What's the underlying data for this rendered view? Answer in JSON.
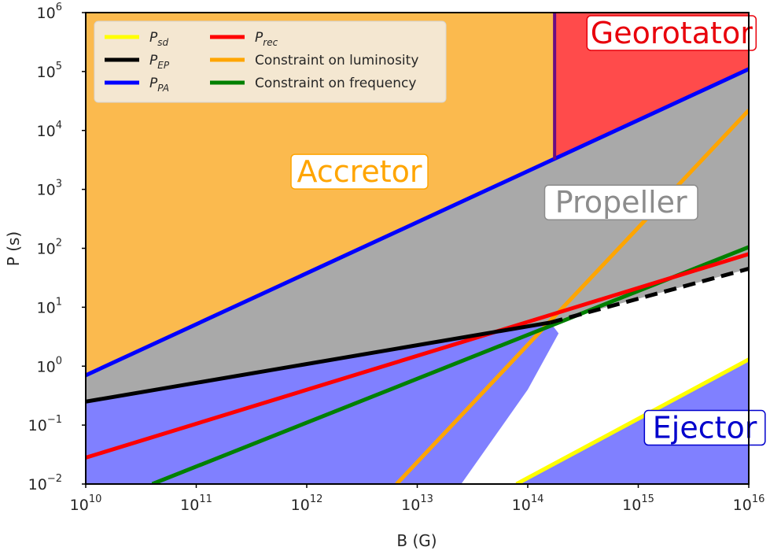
{
  "chart_data": {
    "type": "line",
    "title": "",
    "xlabel": "B (G)",
    "ylabel": "P (s)",
    "xscale": "log",
    "yscale": "log",
    "xlim": [
      10000000000.0,
      1e+16
    ],
    "ylim": [
      0.01,
      1000000
    ],
    "grid": false,
    "legend_position": "top-left",
    "x_ticks": [
      {
        "base": "10",
        "exp": "10"
      },
      {
        "base": "10",
        "exp": "11"
      },
      {
        "base": "10",
        "exp": "12"
      },
      {
        "base": "10",
        "exp": "13"
      },
      {
        "base": "10",
        "exp": "14"
      },
      {
        "base": "10",
        "exp": "15"
      },
      {
        "base": "10",
        "exp": "16"
      }
    ],
    "y_ticks": [
      {
        "base": "10",
        "exp": "−2"
      },
      {
        "base": "10",
        "exp": "−1"
      },
      {
        "base": "10",
        "exp": "0"
      },
      {
        "base": "10",
        "exp": "1"
      },
      {
        "base": "10",
        "exp": "2"
      },
      {
        "base": "10",
        "exp": "3"
      },
      {
        "base": "10",
        "exp": "4"
      },
      {
        "base": "10",
        "exp": "5"
      },
      {
        "base": "10",
        "exp": "6"
      }
    ],
    "series": [
      {
        "name": "P",
        "sub": "sd",
        "color": "#ffff00",
        "x": [
          79000000000000.0,
          1e+16
        ],
        "y": [
          0.01,
          1.3
        ]
      },
      {
        "name": "P",
        "sub": "EP",
        "color": "#000000",
        "x": [
          10000000000.0,
          160000000000000.0
        ],
        "y": [
          0.25,
          5.5
        ],
        "dashed_continuation": {
          "x": [
            160000000000000.0,
            1e+16
          ],
          "y": [
            5.5,
            45
          ]
        }
      },
      {
        "name": "P",
        "sub": "PA",
        "color": "#0000ff",
        "x": [
          10000000000.0,
          1e+16
        ],
        "y": [
          0.7,
          110000
        ]
      },
      {
        "name": "P",
        "sub": "rec",
        "color": "#ff0000",
        "x": [
          10000000000.0,
          1e+16
        ],
        "y": [
          0.028,
          80
        ]
      },
      {
        "name": "Constraint on luminosity",
        "sub": "",
        "color": "#ffa500",
        "x": [
          6500000000000.0,
          1e+16
        ],
        "y": [
          0.01,
          22000
        ]
      },
      {
        "name": "Constraint on frequency",
        "sub": "",
        "color": "#008000",
        "x": [
          40000000000.0,
          1e+16
        ],
        "y": [
          0.01,
          105
        ]
      }
    ],
    "georotator_boundary": {
      "color": "#6a0d83",
      "x": 175000000000000.0,
      "y_range": [
        3200,
        1000000
      ]
    },
    "regions": [
      {
        "label": "Accretor",
        "text_color": "#ffa500",
        "fill": "#fbba4e",
        "label_x": 3000000000000.0,
        "label_y": 2000
      },
      {
        "label": "Georotator",
        "text_color": "#e8000b",
        "fill": "#ff4b4b",
        "label_x": 2000000000000000.0,
        "label_y": 450000
      },
      {
        "label": "Propeller",
        "text_color": "#8c8c8c",
        "fill": "#a9a9a9",
        "label_x": 700000000000000.0,
        "label_y": 600
      },
      {
        "label": "Ejector",
        "text_color": "#0000cc",
        "fill": "#8080ff",
        "label_x": 4000000000000000.0,
        "label_y": 0.09
      }
    ]
  }
}
